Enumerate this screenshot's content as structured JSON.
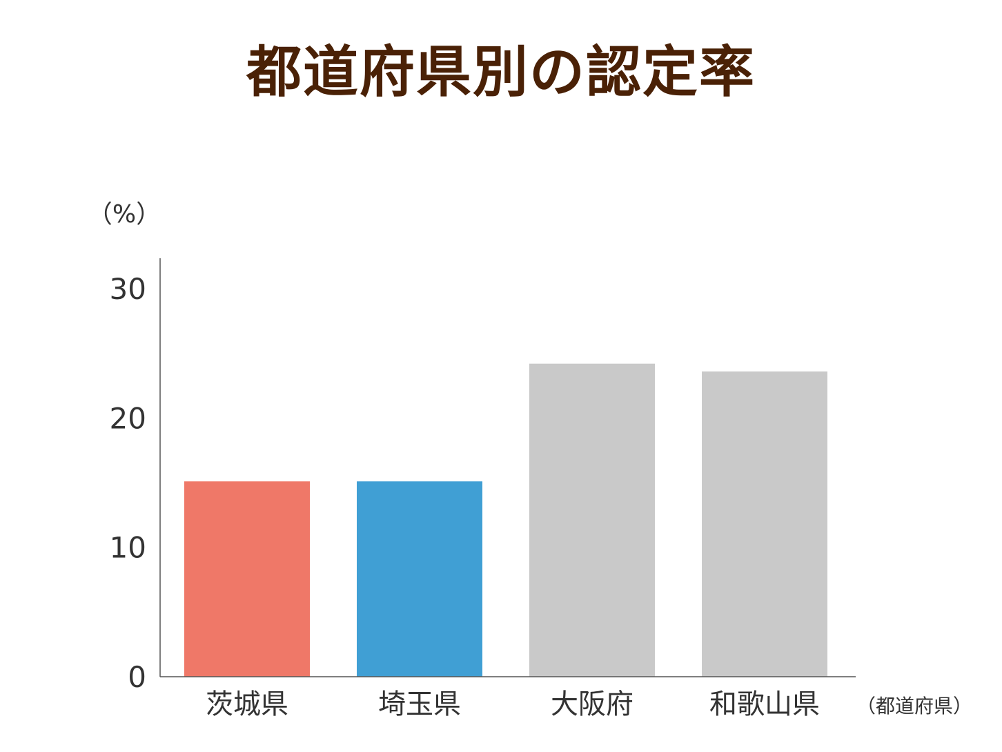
{
  "chart_data": {
    "type": "bar",
    "title": "都道府県別の認定率",
    "y_unit": "（%）",
    "x_unit": "（都道府県）",
    "categories": [
      "茨城県",
      "埼玉県",
      "大阪府",
      "和歌山県"
    ],
    "values": [
      15.1,
      15.1,
      24.2,
      23.6
    ],
    "colors": [
      "#ef7868",
      "#409fd4",
      "#c9c9c9",
      "#c9c9c9"
    ],
    "ylim": [
      0,
      30
    ],
    "yticks": [
      0,
      10,
      20,
      30
    ],
    "grid": false,
    "legend": "none"
  }
}
